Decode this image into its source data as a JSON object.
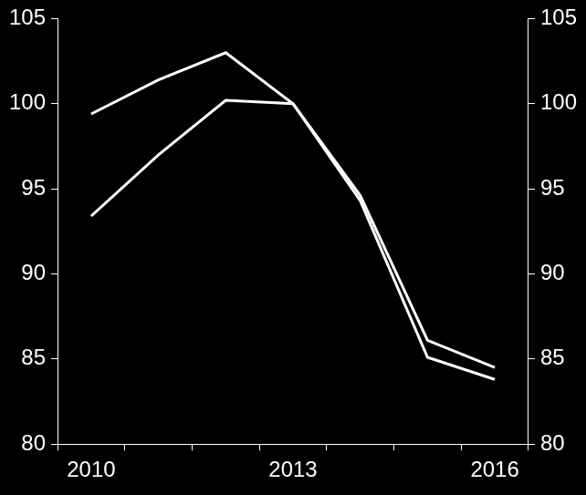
{
  "chart_data": {
    "type": "line",
    "categories": [
      "2010",
      null,
      null,
      "2013",
      null,
      null,
      "2016"
    ],
    "series": [
      {
        "color": "#ffffff",
        "values": [
          99.4,
          101.4,
          103.0,
          100.0,
          94.6,
          86.1,
          84.5
        ]
      },
      {
        "color": "#ffffff",
        "values": [
          93.4,
          97.0,
          100.2,
          100.0,
          94.3,
          85.1,
          83.8
        ]
      }
    ],
    "ylim": [
      80,
      105
    ],
    "yticks": [
      80,
      85,
      90,
      95,
      100,
      105
    ],
    "y2lim": [
      80,
      105
    ],
    "y2ticks": [
      80,
      85,
      90,
      95,
      100,
      105
    ],
    "grid": false
  }
}
